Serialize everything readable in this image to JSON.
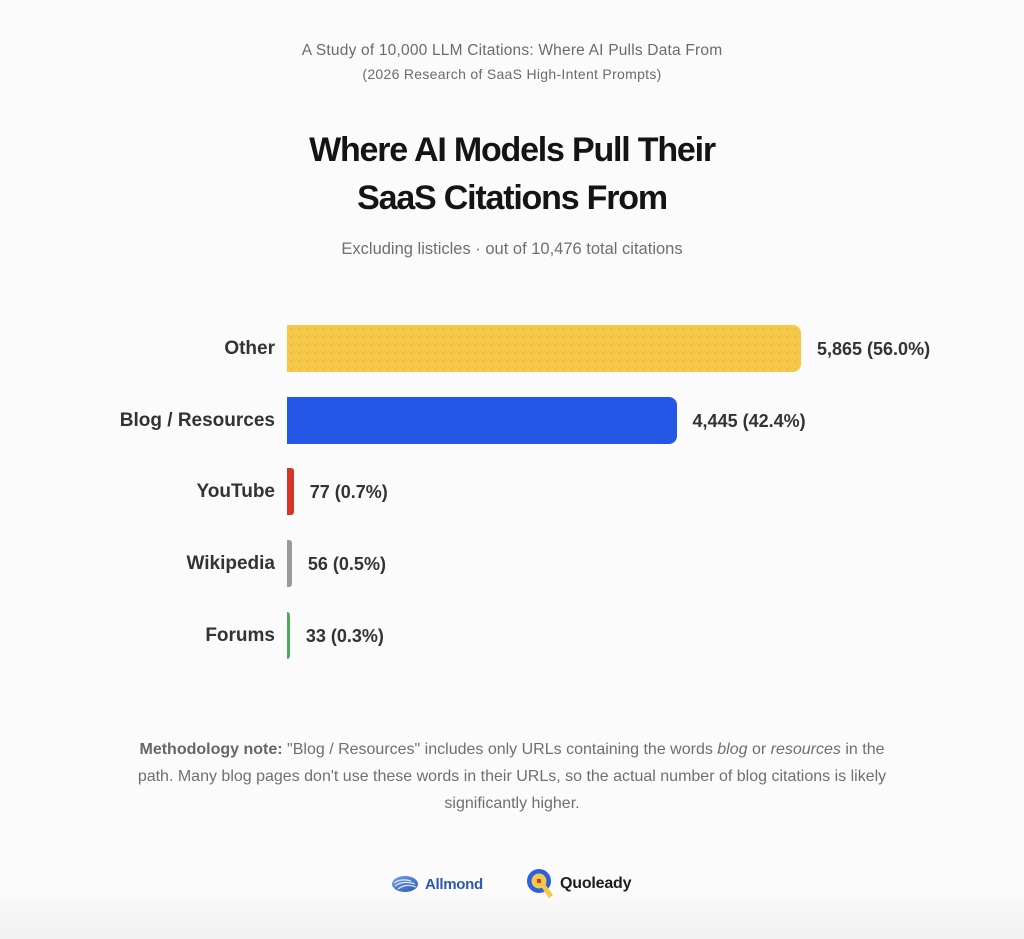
{
  "header": {
    "kicker_line_1": "A Study of 10,000 LLM Citations: Where AI Pulls Data From",
    "kicker_line_2": "(2026 Research of SaaS High-Intent Prompts)",
    "title_line_1": "Where AI Models Pull Their",
    "title_line_2": "SaaS Citations From",
    "subtitle": "Excluding listicles · out of 10,476 total citations"
  },
  "chart_data": {
    "type": "bar",
    "orientation": "horizontal",
    "title": "Where AI Models Pull Their SaaS Citations From",
    "subtitle": "Excluding listicles · out of 10,476 total citations",
    "xlabel": "",
    "ylabel": "",
    "total": 10476,
    "grid": false,
    "legend": null,
    "categories": [
      "Other",
      "Blog / Resources",
      "YouTube",
      "Wikipedia",
      "Forums"
    ],
    "values": [
      5865,
      4445,
      77,
      56,
      33
    ],
    "percentages": [
      56.0,
      42.4,
      0.7,
      0.5,
      0.3
    ],
    "data_labels": [
      "5,865 (56.0%)",
      "4,445 (42.4%)",
      "77 (0.7%)",
      "56 (0.5%)",
      "33 (0.3%)"
    ],
    "colors": [
      "#f6c84a",
      "#2557e6",
      "#d7342a",
      "#9a9a9a",
      "#4faa5c"
    ]
  },
  "note": {
    "bold_lead": "Methodology note:",
    "part_1": " \"Blog / Resources\" includes only URLs containing the words ",
    "italic_1": "blog",
    "part_2": " or ",
    "italic_2": "resources",
    "part_3": " in the path. Many blog pages don't use these words in their URLs, so the actual number of blog citations is likely significantly higher."
  },
  "footer": {
    "logos": [
      {
        "name": "Allmond",
        "icon": "allmond-logo-icon",
        "color": "#2c5aa8"
      },
      {
        "name": "Quoleady",
        "icon": "quoleady-logo-icon",
        "color": "#1d1d1d"
      }
    ]
  }
}
